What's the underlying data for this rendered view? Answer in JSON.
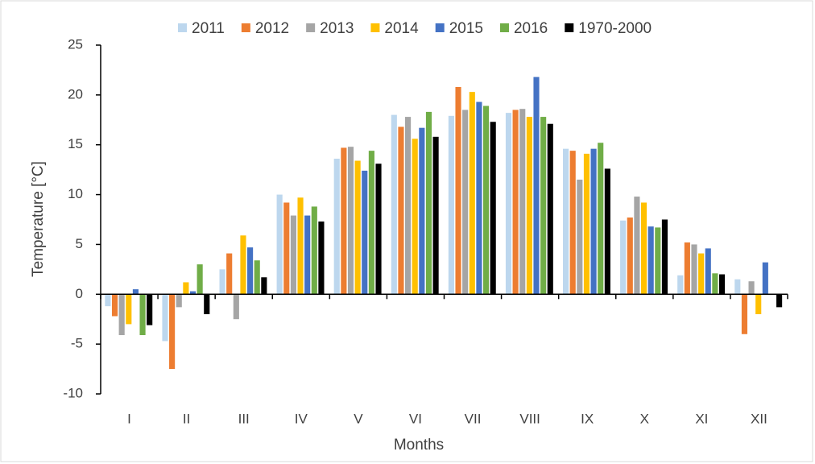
{
  "chart_data": {
    "type": "bar",
    "y_label": "Temperature [°C]",
    "x_label": "Months",
    "categories": [
      "I",
      "II",
      "III",
      "IV",
      "V",
      "VI",
      "VII",
      "VIII",
      "IX",
      "X",
      "XI",
      "XII"
    ],
    "series": [
      {
        "name": "2011",
        "color": "#bdd7ee",
        "values": [
          -1.2,
          -4.7,
          2.5,
          10.0,
          13.6,
          18.0,
          17.9,
          18.2,
          14.6,
          7.4,
          1.9,
          1.5
        ]
      },
      {
        "name": "2012",
        "color": "#ed7d31",
        "values": [
          -2.2,
          -7.5,
          4.1,
          9.2,
          14.7,
          16.8,
          20.8,
          18.5,
          14.4,
          7.7,
          5.2,
          -4.0
        ]
      },
      {
        "name": "2013",
        "color": "#a5a5a5",
        "values": [
          -4.1,
          -1.3,
          -2.5,
          7.9,
          14.8,
          17.8,
          18.5,
          18.6,
          11.5,
          9.8,
          5.0,
          1.3
        ]
      },
      {
        "name": "2014",
        "color": "#ffc000",
        "values": [
          -3.0,
          1.2,
          5.9,
          9.7,
          13.4,
          15.6,
          20.3,
          17.8,
          14.1,
          9.2,
          4.1,
          -2.0
        ]
      },
      {
        "name": "2015",
        "color": "#4472c4",
        "values": [
          0.5,
          0.3,
          4.7,
          7.9,
          12.4,
          16.7,
          19.3,
          21.8,
          14.6,
          6.8,
          4.6,
          3.2
        ]
      },
      {
        "name": "2016",
        "color": "#70ad47",
        "values": [
          -4.1,
          3.0,
          3.4,
          8.8,
          14.4,
          18.3,
          18.9,
          17.8,
          15.2,
          6.7,
          2.1,
          0
        ]
      },
      {
        "name": "1970-2000",
        "color": "#000000",
        "values": [
          -3.1,
          -2.0,
          1.7,
          7.3,
          13.1,
          15.8,
          17.3,
          17.1,
          12.6,
          7.5,
          2.0,
          -1.3
        ]
      }
    ],
    "ylim": [
      -10,
      25
    ],
    "yticks": [
      -10,
      -5,
      0,
      5,
      10,
      15,
      20,
      25
    ],
    "grid": false,
    "legend": "top"
  }
}
